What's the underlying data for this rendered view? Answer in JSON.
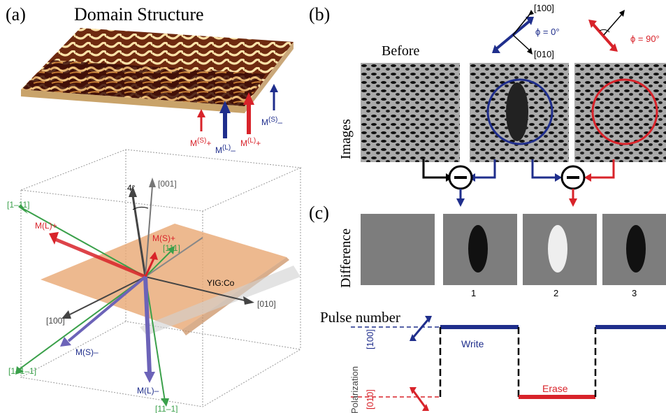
{
  "panel_a": {
    "label": "(a)",
    "title": "Domain Structure",
    "magnetization_labels": {
      "ms_plus": "M",
      "ms_plus_sup": "(S)",
      "ms_plus_sign": "+",
      "ml_minus": "M",
      "ml_minus_sup": "(L)",
      "ml_minus_sign": "–",
      "ml_plus": "M",
      "ml_plus_sup": "(L)",
      "ml_plus_sign": "+",
      "ms_minus": "M",
      "ms_minus_sup": "(S)",
      "ms_minus_sign": "–"
    },
    "crystal": {
      "angle": "4°",
      "dir_001": "[001]",
      "dir_1m11": "[1–11]",
      "dir_111": "[111]",
      "dir_010": "[010]",
      "dir_100": "[100]",
      "dir_1m1m1": "[1–1–1]",
      "dir_11m1": "[11–1]",
      "material": "YIG:Co",
      "ml_plus": "M(L)+",
      "ms_plus": "M(S)+",
      "ms_minus": "M(S)–",
      "ml_minus": "M(L)–"
    }
  },
  "panel_b": {
    "label": "(b)",
    "ylabel": "Images",
    "before": "Before",
    "dir_100": "[100]",
    "dir_010": "[010]",
    "phi0": "ϕ = 0°",
    "phi90": "ϕ = 90°"
  },
  "panel_c": {
    "label": "(c)",
    "ylabel": "Difference",
    "pulse_numbers": [
      "1",
      "2",
      "3"
    ],
    "pulse_title": "Pulse number",
    "polarization_label": "Polarization",
    "level_100": "[100]",
    "level_010": "[010]",
    "write": "Write",
    "erase": "Erase"
  },
  "colors": {
    "blue": "#1f2e8c",
    "red": "#d8232a",
    "green": "#3aa04a",
    "orange": "#e9a873"
  }
}
